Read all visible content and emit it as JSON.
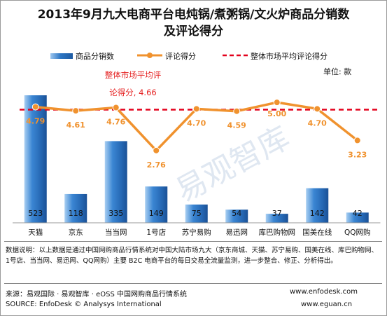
{
  "title_line1": "2013年9月九大电商平台电炖锅/煮粥锅/文火炉商品分销数",
  "title_line2": "及评论得分",
  "legend": {
    "bar": "商品分销数",
    "line": "评论得分",
    "avg": "整体市场平均评论得分"
  },
  "unit": "单位: 款",
  "avg_annotation_line1": "整体市场平均评",
  "avg_annotation_line2": "论得分, 4.66",
  "watermark": "易观智库",
  "note": "数据说明：以上数据是通过中国网购商品行情系统对中国大陆市场九大（京东商城、天猫、苏宁易购、国美在线、库巴购物网、1号店、当当网、易迅网、QQ网购）主要 B2C 电商平台的每日交易全流量监测，进一步整合、修正、分析得出。",
  "footer": {
    "source_cn": "来源：易观国际 · 易观智库 · eOSS 中国网购商品行情系统",
    "source_en": "SOURCE: EnfoDesk © Analysys International",
    "url1": "www.enfodesk.com",
    "url2": "www.eguan.cn"
  },
  "chart_data": {
    "type": "bar+line",
    "categories": [
      "天猫",
      "京东",
      "当当网",
      "1号店",
      "苏宁易购",
      "易迅网",
      "库巴购物网",
      "国美在线",
      "QQ网购"
    ],
    "series": [
      {
        "name": "商品分销数",
        "type": "bar",
        "values": [
          523,
          118,
          335,
          149,
          75,
          54,
          37,
          142,
          42
        ]
      },
      {
        "name": "评论得分",
        "type": "line",
        "values": [
          4.79,
          4.61,
          4.76,
          2.76,
          4.7,
          4.59,
          5.0,
          4.7,
          3.23
        ]
      }
    ],
    "reference_line": {
      "name": "整体市场平均评论得分",
      "value": 4.66
    },
    "bar_ylim": [
      0,
      560
    ],
    "line_ylim": [
      0,
      6.6
    ],
    "colors": {
      "bar": "#2d76c4",
      "line": "#f0922e",
      "avg": "#e3001b",
      "value_label": "#f0922e"
    }
  }
}
